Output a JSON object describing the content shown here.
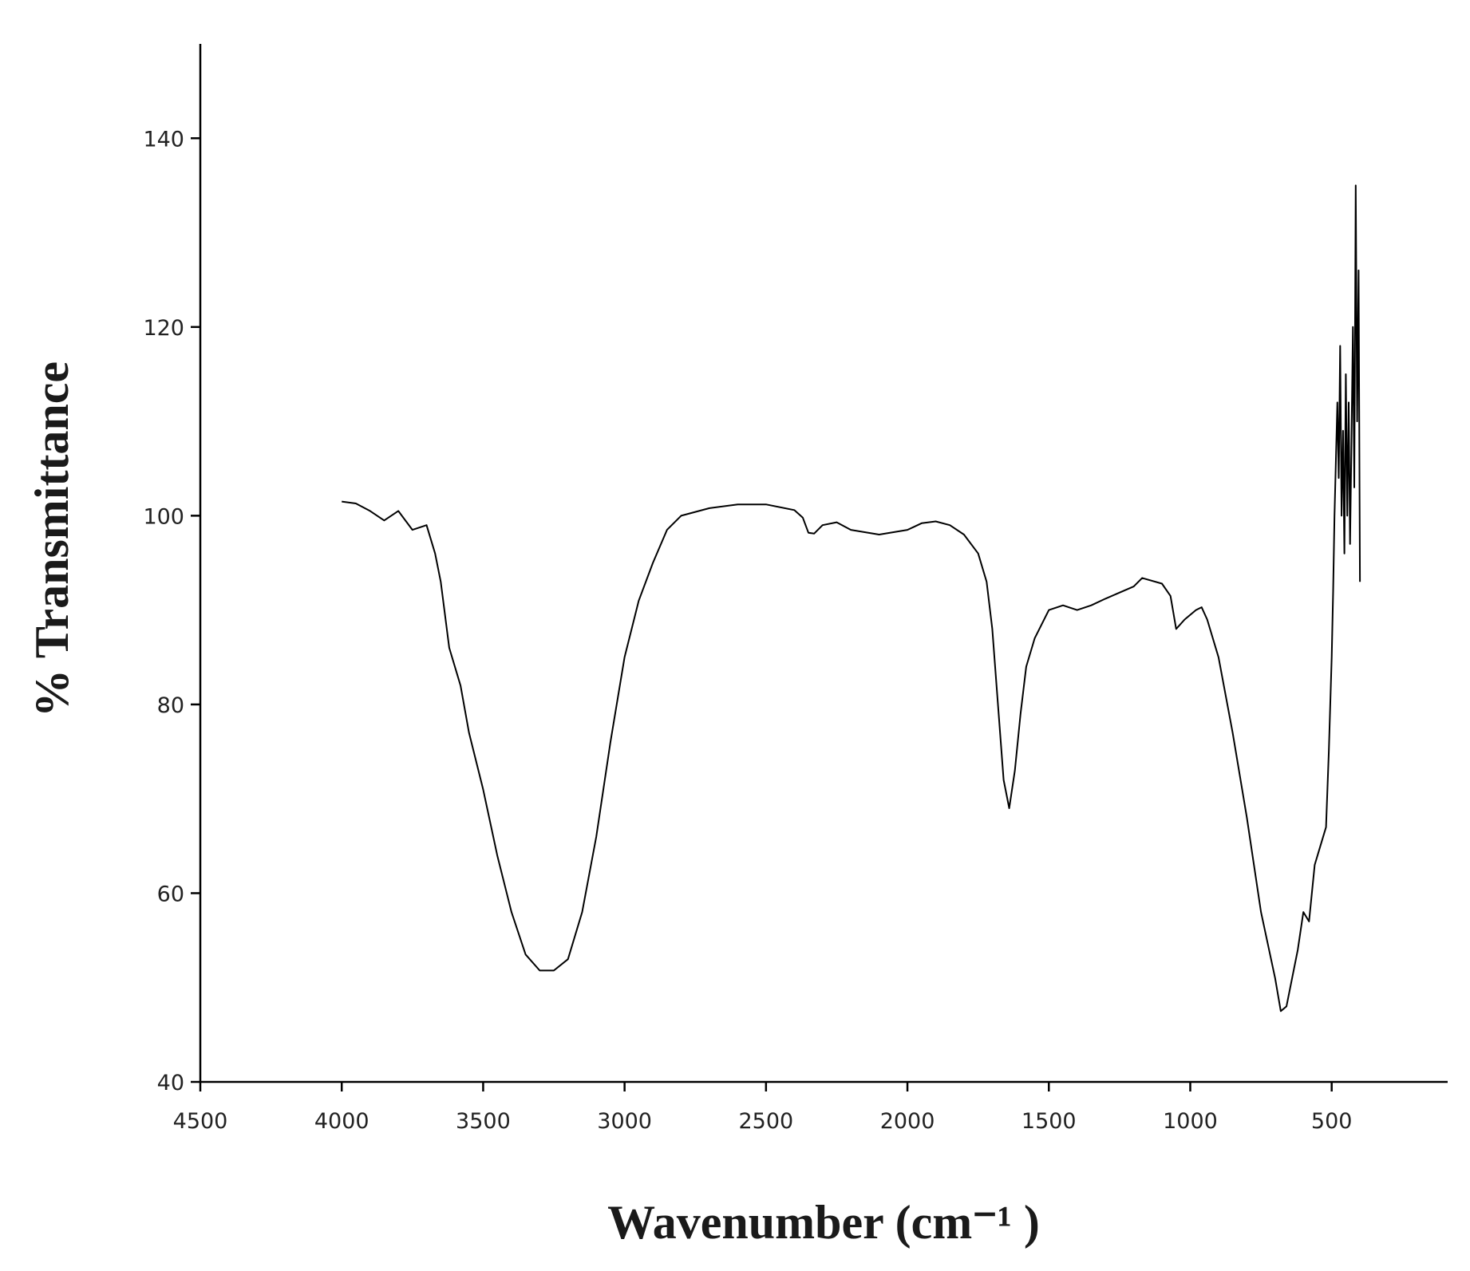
{
  "chart_data": {
    "type": "line",
    "title_y": "% Transmittance",
    "title_x": "Wavenumber (cm⁻¹ )",
    "xlim": [
      4500,
      90
    ],
    "xticks": [
      4500,
      4000,
      3500,
      3000,
      2500,
      2000,
      1500,
      1000,
      500
    ],
    "ylim": [
      40,
      150
    ],
    "yticks": [
      40,
      60,
      80,
      100,
      120,
      140
    ],
    "color": "#000000",
    "x": [
      4000,
      3950,
      3900,
      3850,
      3800,
      3750,
      3700,
      3670,
      3650,
      3620,
      3580,
      3550,
      3500,
      3450,
      3400,
      3350,
      3300,
      3250,
      3200,
      3150,
      3100,
      3050,
      3000,
      2950,
      2900,
      2850,
      2800,
      2700,
      2600,
      2500,
      2400,
      2370,
      2350,
      2330,
      2300,
      2250,
      2200,
      2100,
      2000,
      1950,
      1900,
      1850,
      1800,
      1750,
      1720,
      1700,
      1680,
      1660,
      1640,
      1620,
      1600,
      1580,
      1550,
      1500,
      1450,
      1400,
      1350,
      1300,
      1200,
      1170,
      1100,
      1070,
      1050,
      1020,
      980,
      960,
      940,
      900,
      850,
      800,
      750,
      700,
      680,
      660,
      640,
      620,
      600,
      580,
      560,
      540,
      520,
      510,
      500,
      495,
      490,
      485,
      480,
      475,
      470,
      465,
      460,
      455,
      450,
      445,
      440,
      435,
      430,
      425,
      420,
      415,
      410,
      405,
      400
    ],
    "values": [
      101.5,
      101.3,
      100.5,
      99.5,
      100.5,
      98.5,
      99,
      96,
      93,
      86,
      82,
      77,
      71,
      64,
      58,
      53.5,
      51.8,
      51.8,
      53,
      58,
      66,
      76,
      85,
      91,
      95,
      98.5,
      100,
      100.8,
      101.2,
      101.2,
      100.6,
      99.8,
      98.2,
      98.1,
      99,
      99.3,
      98.5,
      98,
      98.5,
      99.2,
      99.4,
      99,
      98,
      96,
      93,
      88,
      80,
      72,
      69,
      73,
      79,
      84,
      87,
      90,
      90.5,
      90,
      90.5,
      91.2,
      92.5,
      93.4,
      92.8,
      91.5,
      88,
      89,
      90,
      90.3,
      89,
      85,
      77,
      68,
      58,
      51,
      47.5,
      48,
      51,
      54,
      58,
      57,
      63,
      65,
      67,
      75,
      85,
      92,
      100,
      106,
      112,
      104,
      118,
      100,
      109,
      96,
      115,
      100,
      112,
      97,
      108,
      120,
      103,
      135,
      110,
      126,
      93
    ]
  }
}
